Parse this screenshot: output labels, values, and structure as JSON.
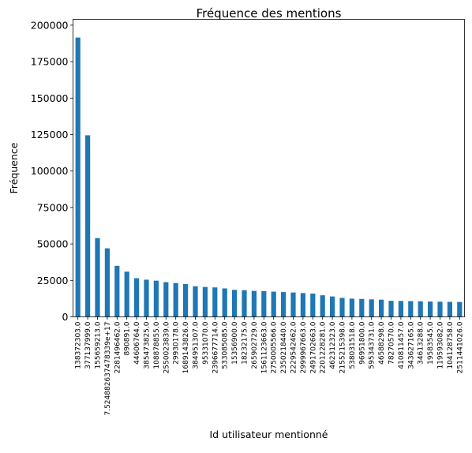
{
  "chart_data": {
    "type": "bar",
    "title": "Fréquence des mentions",
    "xlabel": "Id utilisateur mentionné",
    "ylabel": "Fréquence",
    "ylim": [
      0,
      204000
    ],
    "yticks": [
      "0",
      "25000",
      "50000",
      "75000",
      "100000",
      "125000",
      "150000",
      "175000",
      "200000"
    ],
    "grid": false,
    "color": "#1f77b4",
    "categories": [
      "138372303.0",
      "377137999.0",
      "155659213.0",
      "7.524882637478339e+17",
      "2281496462.0",
      "890891.0",
      "44606764.0",
      "385473825.0",
      "108878855.0",
      "2550023839.0",
      "29930178.0",
      "1689143826.0",
      "384951307.0",
      "95331070.0",
      "2396677714.0",
      "533085085.0",
      "15356900.0",
      "18232175.0",
      "265902729.0",
      "1561123663.0",
      "2750005566.0",
      "2350218440.0",
      "2229542462.0",
      "2999967663.0",
      "2491702663.0",
      "2201228281.0",
      "462312323.0",
      "2155215398.0",
      "538031518.0",
      "96951800.0",
      "595343731.0",
      "46588298.0",
      "78270570.0",
      "410811457.0",
      "343627165.0",
      "34613288.0",
      "19583545.0",
      "119593082.0",
      "104128758.0",
      "2511441026.0"
    ],
    "values": [
      191500,
      124500,
      54000,
      47000,
      35000,
      31000,
      26500,
      25500,
      24800,
      23800,
      23200,
      22500,
      21000,
      20500,
      20200,
      19500,
      18500,
      18300,
      17800,
      17700,
      17300,
      17000,
      16700,
      16300,
      16000,
      14800,
      14000,
      13000,
      12500,
      12300,
      12000,
      11800,
      11000,
      10900,
      10800,
      10700,
      10500,
      10400,
      10300,
      10200
    ]
  }
}
